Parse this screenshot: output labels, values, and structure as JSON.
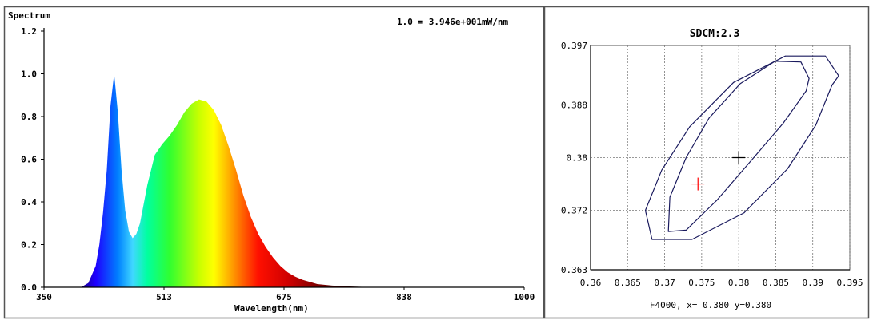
{
  "chart_data": [
    {
      "type": "area",
      "title": "Spectrum",
      "scale_note": "1.0 = 3.946e+001mW/nm",
      "xlabel": "Wavelength(nm)",
      "ylabel": "",
      "xlim": [
        350,
        1000
      ],
      "ylim": [
        0,
        1.2
      ],
      "x_ticks": [
        "350",
        "513",
        "675",
        "838",
        "1000"
      ],
      "y_ticks": [
        "0.0",
        "0.2",
        "0.4",
        "0.6",
        "0.8",
        "1.0",
        "1.2"
      ],
      "grid": false,
      "series": [
        {
          "x": [
            350,
            380,
            400,
            410,
            420,
            425,
            430,
            435,
            440,
            445,
            450,
            455,
            460,
            465,
            470,
            475,
            480,
            490,
            500,
            510,
            520,
            530,
            540,
            550,
            560,
            570,
            580,
            590,
            600,
            610,
            620,
            630,
            640,
            650,
            660,
            670,
            680,
            690,
            700,
            710,
            720,
            740,
            760,
            780,
            800,
            838,
            1000
          ],
          "y": [
            0,
            0,
            0,
            0.02,
            0.1,
            0.2,
            0.35,
            0.55,
            0.85,
            1.0,
            0.82,
            0.55,
            0.36,
            0.26,
            0.23,
            0.25,
            0.3,
            0.48,
            0.62,
            0.67,
            0.71,
            0.76,
            0.82,
            0.86,
            0.88,
            0.87,
            0.83,
            0.76,
            0.66,
            0.55,
            0.43,
            0.33,
            0.25,
            0.19,
            0.14,
            0.1,
            0.07,
            0.05,
            0.035,
            0.025,
            0.015,
            0.008,
            0.004,
            0.002,
            0.001,
            0,
            0
          ]
        }
      ]
    },
    {
      "type": "line",
      "title": "SDCM:2.3",
      "footer": "F4000, x= 0.380 y=0.380",
      "xlim": [
        0.36,
        0.395
      ],
      "ylim": [
        0.363,
        0.397
      ],
      "x_ticks": [
        "0.36",
        "0.365",
        "0.37",
        "0.375",
        "0.38",
        "0.385",
        "0.39",
        "0.395"
      ],
      "y_ticks": [
        "0.397",
        "0.388",
        "0.38",
        "0.372",
        "0.363"
      ],
      "y_tick_values": [
        0.397,
        0.388,
        0.38,
        0.372,
        0.363
      ],
      "grid": true,
      "reference_point": {
        "x": 0.38,
        "y": 0.38,
        "color": "#000000"
      },
      "measured_point": {
        "x": 0.3745,
        "y": 0.376,
        "color": "#ff0000"
      },
      "ellipse_color": "#1a1a5e",
      "ellipses": [
        {
          "x": [
            0.3935,
            0.3917,
            0.3863,
            0.3793,
            0.3734,
            0.3696,
            0.3674,
            0.3683,
            0.3737,
            0.3807,
            0.3866,
            0.3904,
            0.3926,
            0.3935
          ],
          "y": [
            0.3924,
            0.3954,
            0.3954,
            0.3914,
            0.3847,
            0.3781,
            0.372,
            0.3676,
            0.3676,
            0.3716,
            0.3783,
            0.3849,
            0.391,
            0.3924
          ]
        },
        {
          "x": [
            0.3895,
            0.3884,
            0.3849,
            0.3802,
            0.376,
            0.3729,
            0.3707,
            0.3705,
            0.3729,
            0.3771,
            0.3818,
            0.386,
            0.3891,
            0.3895
          ],
          "y": [
            0.392,
            0.3945,
            0.3946,
            0.3912,
            0.386,
            0.38,
            0.374,
            0.3688,
            0.369,
            0.3736,
            0.3797,
            0.3852,
            0.3901,
            0.392
          ]
        }
      ]
    }
  ]
}
